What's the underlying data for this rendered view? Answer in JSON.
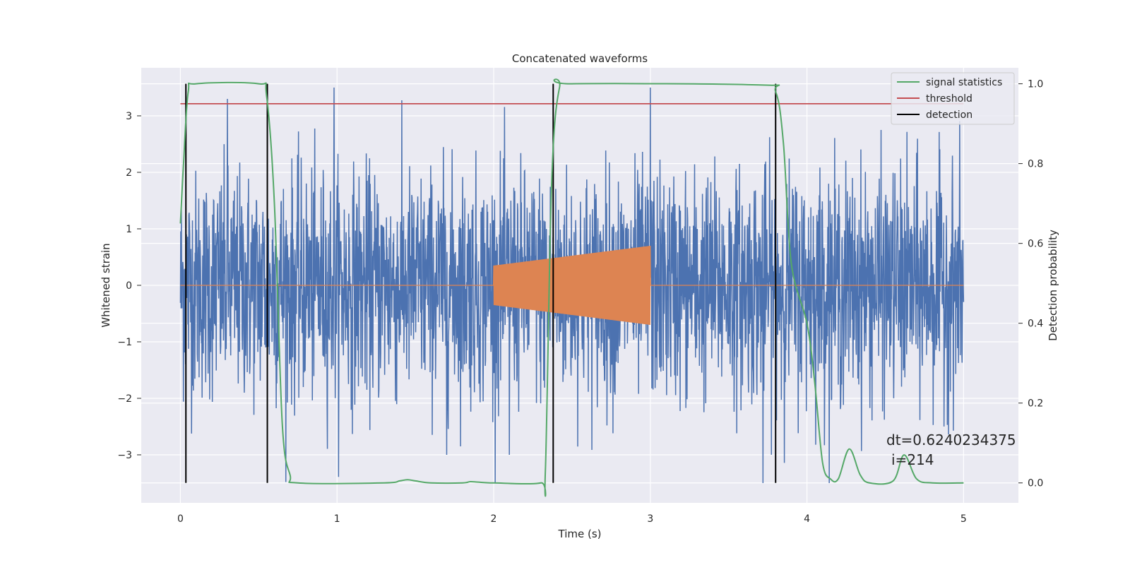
{
  "chart_data": {
    "type": "line",
    "title": "Concatenated waveforms",
    "xlabel": "Time (s)",
    "ylabel_left": "Whitened strain",
    "ylabel_right": "Detection probability",
    "xlim": [
      -0.25,
      5.35
    ],
    "ylim_left": [
      -3.85,
      3.85
    ],
    "ylim_right": [
      -0.05,
      1.04
    ],
    "xticks": [
      0,
      1,
      2,
      3,
      4,
      5
    ],
    "yticks_left": [
      -3,
      -2,
      -1,
      0,
      1,
      2,
      3
    ],
    "yticks_right": [
      0.0,
      0.2,
      0.4,
      0.6,
      0.8,
      1.0
    ],
    "grid": true,
    "legend_position": "top-right",
    "series": [
      {
        "name": "",
        "axis": "left",
        "color": "#4c72b0",
        "description": "whitened noise",
        "x_range": [
          0,
          5
        ],
        "amplitude_rms": 1.0,
        "peaks": [
          [
            0.3,
            3.3
          ],
          [
            0.98,
            3.5
          ],
          [
            3.0,
            3.5
          ],
          [
            3.72,
            -3.5
          ],
          [
            1.7,
            -3.0
          ],
          [
            2.1,
            -3.0
          ]
        ]
      },
      {
        "name": "",
        "axis": "left",
        "color": "#dd8452",
        "description": "injected chirp",
        "x_range": [
          0,
          5
        ],
        "chirp_range": [
          2.0,
          3.0
        ],
        "amp_start": 0.35,
        "amp_end": 0.7
      },
      {
        "name": "signal statistics",
        "axis": "right",
        "color": "#55a868",
        "x": [
          0.0,
          0.02,
          0.05,
          0.1,
          0.5,
          0.55,
          0.6,
          0.65,
          0.7,
          0.75,
          1.3,
          1.4,
          1.45,
          1.5,
          1.6,
          1.8,
          1.85,
          1.9,
          2.0,
          2.3,
          2.33,
          2.37,
          2.42,
          2.5,
          3.7,
          3.8,
          3.85,
          3.9,
          4.0,
          4.05,
          4.1,
          4.15,
          4.2,
          4.27,
          4.34,
          4.4,
          4.55,
          4.62,
          4.7,
          4.8,
          5.0
        ],
        "y": [
          0.65,
          0.8,
          0.98,
          1.0,
          1.0,
          0.97,
          0.7,
          0.15,
          0.02,
          0.0,
          0.0,
          0.005,
          0.008,
          0.005,
          0.0,
          0.0,
          0.003,
          0.002,
          0.0,
          0.0,
          0.03,
          0.75,
          0.99,
          1.0,
          0.997,
          0.98,
          0.85,
          0.55,
          0.4,
          0.25,
          0.05,
          0.01,
          0.01,
          0.085,
          0.02,
          0.0,
          0.005,
          0.07,
          0.01,
          0.0,
          0.0
        ]
      },
      {
        "name": "threshold",
        "axis": "right",
        "color": "#c44e52",
        "x": [
          0.0,
          5.0
        ],
        "y": [
          0.95,
          0.95
        ]
      },
      {
        "name": "detection",
        "axis": "right",
        "color": "#000000",
        "vlines": [
          0.035,
          0.555,
          2.38,
          3.8
        ],
        "ymin": 0.0,
        "ymax": 1.0
      }
    ],
    "annotation": {
      "line1": "dt=0.6240234375",
      "line2": "i=214"
    }
  }
}
